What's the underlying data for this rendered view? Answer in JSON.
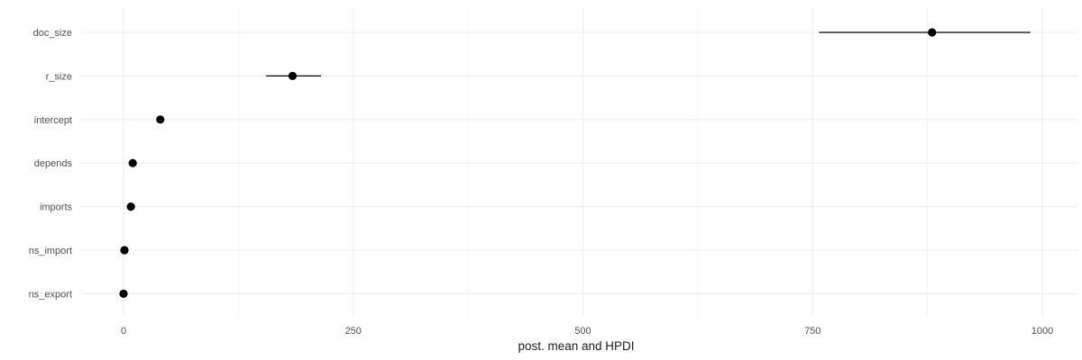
{
  "chart_data": {
    "type": "scatter",
    "subtype": "point-range",
    "title": "",
    "xlabel": "post. mean and HPDI",
    "ylabel": "",
    "xlim": [
      -90,
      1200
    ],
    "x_ticks": [
      0,
      250,
      500,
      750,
      1000
    ],
    "x_minor_ticks": [
      125,
      375,
      625,
      875
    ],
    "grid": true,
    "categories": [
      "doc_size",
      "r_size",
      "intercept",
      "depends",
      "imports",
      "ns_import",
      "ns_export"
    ],
    "series": [
      {
        "mean": [
          880,
          184,
          40,
          10,
          8,
          1,
          0
        ],
        "lower": [
          757,
          155,
          40,
          10,
          8,
          1,
          0
        ],
        "upper": [
          987,
          215,
          40,
          10,
          8,
          1,
          0
        ]
      }
    ]
  }
}
